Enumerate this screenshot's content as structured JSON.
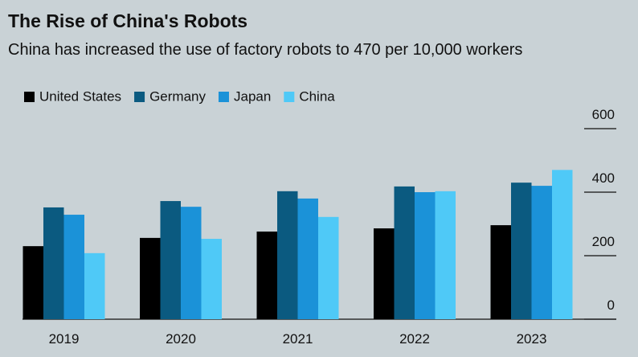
{
  "chart_data": {
    "type": "bar",
    "title": "The Rise of China's Robots",
    "subtitle": "China has increased the use of factory robots to 470 per 10,000 workers",
    "categories": [
      "2019",
      "2020",
      "2021",
      "2022",
      "2023"
    ],
    "series": [
      {
        "name": "United States",
        "color": "#000000",
        "values": [
          230,
          256,
          276,
          286,
          296
        ]
      },
      {
        "name": "Germany",
        "color": "#0b5a80",
        "values": [
          352,
          372,
          403,
          418,
          430
        ]
      },
      {
        "name": "Japan",
        "color": "#1b92d8",
        "values": [
          329,
          354,
          380,
          400,
          420
        ]
      },
      {
        "name": "China",
        "color": "#4fc9f7",
        "values": [
          208,
          253,
          322,
          403,
          470
        ]
      }
    ],
    "ylim": [
      0,
      600
    ],
    "yticks": [
      0,
      200,
      400,
      600
    ]
  }
}
